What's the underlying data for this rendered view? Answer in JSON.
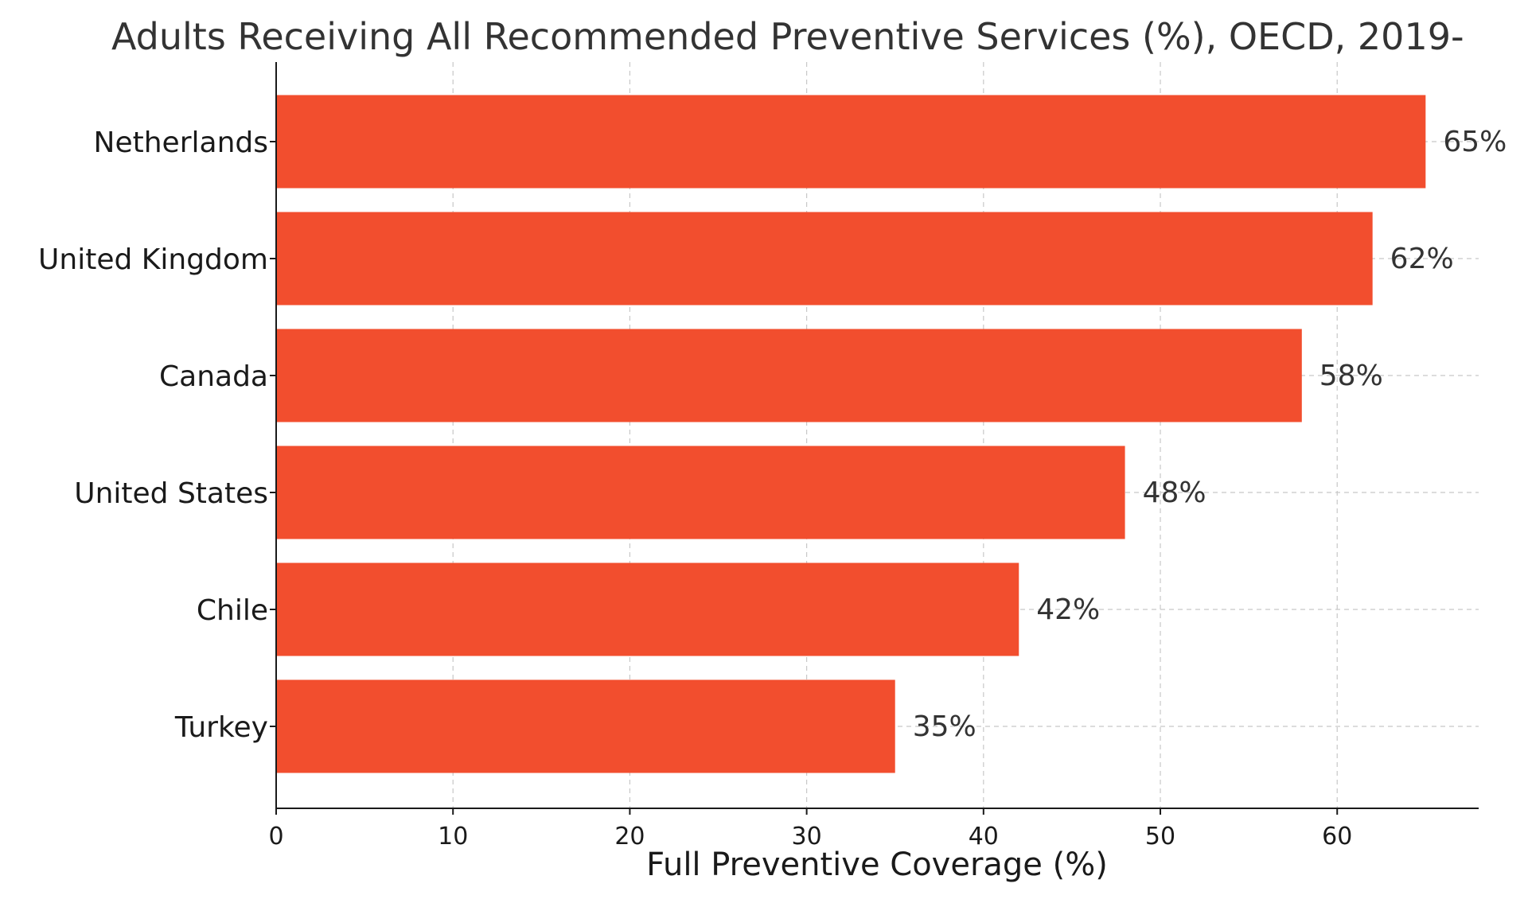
{
  "chart_data": {
    "type": "bar",
    "orientation": "horizontal",
    "title": "Adults Receiving All Recommended Preventive Services (%), OECD, 2019-",
    "xlabel": "Full Preventive Coverage (%)",
    "ylabel": "",
    "categories": [
      "Netherlands",
      "United Kingdom",
      "Canada",
      "United States",
      "Chile",
      "Turkey"
    ],
    "values": [
      65,
      62,
      58,
      48,
      42,
      35
    ],
    "data_labels": [
      "65%",
      "62%",
      "58%",
      "48%",
      "42%",
      "35%"
    ],
    "xlim": [
      0,
      68
    ],
    "xticks": [
      0,
      10,
      20,
      30,
      40,
      50,
      60
    ],
    "xtick_labels": [
      "0",
      "10",
      "20",
      "30",
      "40",
      "50",
      "60"
    ],
    "grid": true,
    "legend": "none",
    "colors": {
      "bar": "#f24e2e"
    }
  }
}
